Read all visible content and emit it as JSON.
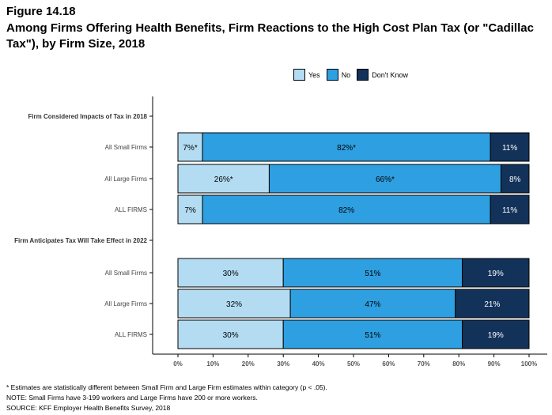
{
  "figure": {
    "number": "Figure 14.18",
    "title": "Among Firms Offering Health Benefits, Firm Reactions to the High Cost Plan Tax (or \"Cadillac Tax\"), by Firm Size, 2018"
  },
  "legend": [
    {
      "label": "Yes",
      "color": "#b3dcf2"
    },
    {
      "label": "No",
      "color": "#2e9fe0"
    },
    {
      "label": "Don't Know",
      "color": "#13325a"
    }
  ],
  "chart_data": {
    "type": "bar",
    "orientation": "horizontal",
    "stacked": true,
    "xlim": [
      0,
      100
    ],
    "x_ticks": [
      "0%",
      "10%",
      "20%",
      "30%",
      "40%",
      "50%",
      "60%",
      "70%",
      "80%",
      "90%",
      "100%"
    ],
    "groups": [
      {
        "header": "Firm Considered Impacts of Tax in 2018",
        "rows": [
          {
            "label": "All Small Firms",
            "values": [
              7,
              82,
              11
            ],
            "labels": [
              "7%*",
              "82%*",
              "11%"
            ]
          },
          {
            "label": "All Large Firms",
            "values": [
              26,
              66,
              8
            ],
            "labels": [
              "26%*",
              "66%*",
              "8%"
            ]
          },
          {
            "label": "ALL FIRMS",
            "values": [
              7,
              82,
              11
            ],
            "labels": [
              "7%",
              "82%",
              "11%"
            ]
          }
        ]
      },
      {
        "header": "Firm Anticipates Tax Will Take Effect in 2022",
        "rows": [
          {
            "label": "All Small Firms",
            "values": [
              30,
              51,
              19
            ],
            "labels": [
              "30%",
              "51%",
              "19%"
            ]
          },
          {
            "label": "All Large Firms",
            "values": [
              32,
              47,
              21
            ],
            "labels": [
              "32%",
              "47%",
              "21%"
            ]
          },
          {
            "label": "ALL FIRMS",
            "values": [
              30,
              51,
              19
            ],
            "labels": [
              "30%",
              "51%",
              "19%"
            ]
          }
        ]
      }
    ]
  },
  "notes": [
    "* Estimates are statistically different between Small Firm and Large Firm estimates within category (p < .05).",
    "NOTE: Small Firms have 3-199 workers and Large Firms have 200 or more workers.",
    "SOURCE: KFF Employer Health Benefits Survey, 2018"
  ]
}
